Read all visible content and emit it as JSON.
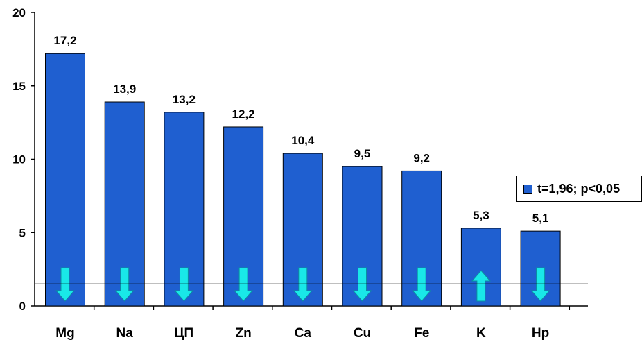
{
  "chart_data": {
    "type": "bar",
    "categories": [
      "Mg",
      "Na",
      "ЦП",
      "Zn",
      "Ca",
      "Cu",
      "Fe",
      "K",
      "Hp"
    ],
    "series": [
      {
        "name": "t=1,96; p<0,05",
        "values": [
          17.2,
          13.9,
          13.2,
          12.2,
          10.4,
          9.5,
          9.2,
          5.3,
          5.1
        ],
        "labels": [
          "17,2",
          "13,9",
          "13,2",
          "12,2",
          "10,4",
          "9,5",
          "9,2",
          "5,3",
          "5,1"
        ],
        "arrows": [
          "down",
          "down",
          "down",
          "down",
          "down",
          "down",
          "down",
          "up",
          "down"
        ]
      }
    ],
    "ylim": [
      0,
      20
    ],
    "yticks": [
      0,
      5,
      10,
      15,
      20
    ],
    "reference_line": 1.5,
    "legend_position": "right",
    "grid": false,
    "colors": {
      "bar": "#1f5fd0",
      "arrow": "#19e8e8",
      "axis": "#000000"
    }
  }
}
